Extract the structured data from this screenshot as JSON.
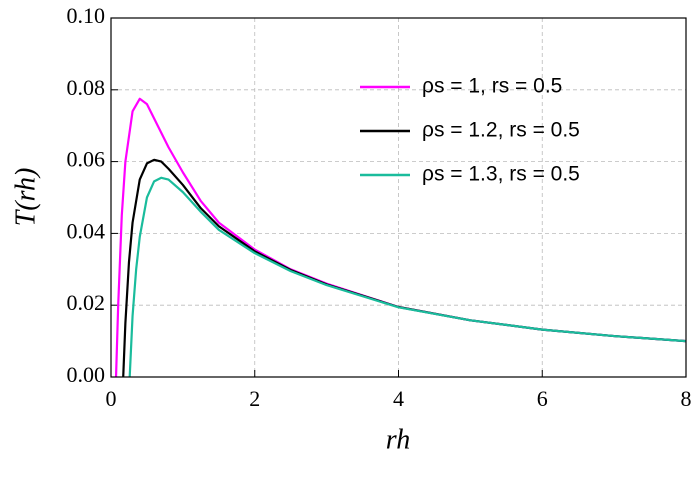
{
  "chart_data": {
    "type": "line",
    "xlabel": "rh",
    "ylabel": "T(rh)",
    "xlim": [
      0,
      8
    ],
    "ylim": [
      0,
      0.1
    ],
    "xticks": [
      0,
      2,
      4,
      6,
      8
    ],
    "yticks": [
      {
        "value": 0,
        "label": "0.00"
      },
      {
        "value": 0.02,
        "label": "0.02"
      },
      {
        "value": 0.04,
        "label": "0.04"
      },
      {
        "value": 0.06,
        "label": "0.06"
      },
      {
        "value": 0.08,
        "label": "0.08"
      },
      {
        "value": 0.1,
        "label": "0.10"
      }
    ],
    "grid": true,
    "legend": "upper right",
    "series": [
      {
        "name": "ρs = 1, rs = 0.5",
        "color": "#ff00ff",
        "x": [
          0.07,
          0.1,
          0.15,
          0.2,
          0.3,
          0.4,
          0.5,
          0.6,
          0.8,
          1,
          1.25,
          1.5,
          2,
          2.5,
          3,
          4,
          5,
          6,
          7,
          8
        ],
        "values": [
          0,
          0.02,
          0.045,
          0.06,
          0.074,
          0.0775,
          0.076,
          0.072,
          0.064,
          0.057,
          0.049,
          0.043,
          0.0355,
          0.03,
          0.026,
          0.0195,
          0.0158,
          0.0132,
          0.0114,
          0.01
        ]
      },
      {
        "name": "ρs = 1.2, rs = 0.5",
        "color": "#000000",
        "x": [
          0.17,
          0.2,
          0.25,
          0.3,
          0.4,
          0.5,
          0.6,
          0.7,
          0.8,
          1,
          1.25,
          1.5,
          2,
          2.5,
          3,
          4,
          5,
          6,
          7,
          8
        ],
        "values": [
          0,
          0.015,
          0.032,
          0.043,
          0.055,
          0.0595,
          0.0605,
          0.06,
          0.058,
          0.0535,
          0.047,
          0.042,
          0.035,
          0.0298,
          0.0258,
          0.0195,
          0.0158,
          0.0132,
          0.0114,
          0.01
        ]
      },
      {
        "name": "ρs = 1.3, rs = 0.5",
        "color": "#1abc9c",
        "x": [
          0.26,
          0.3,
          0.35,
          0.4,
          0.5,
          0.6,
          0.7,
          0.8,
          1,
          1.25,
          1.5,
          2,
          2.5,
          3,
          4,
          5,
          6,
          7,
          8
        ],
        "values": [
          0,
          0.017,
          0.03,
          0.039,
          0.05,
          0.0545,
          0.0555,
          0.055,
          0.0515,
          0.046,
          0.041,
          0.0345,
          0.0295,
          0.0256,
          0.0194,
          0.0158,
          0.0132,
          0.0114,
          0.01
        ]
      }
    ]
  }
}
